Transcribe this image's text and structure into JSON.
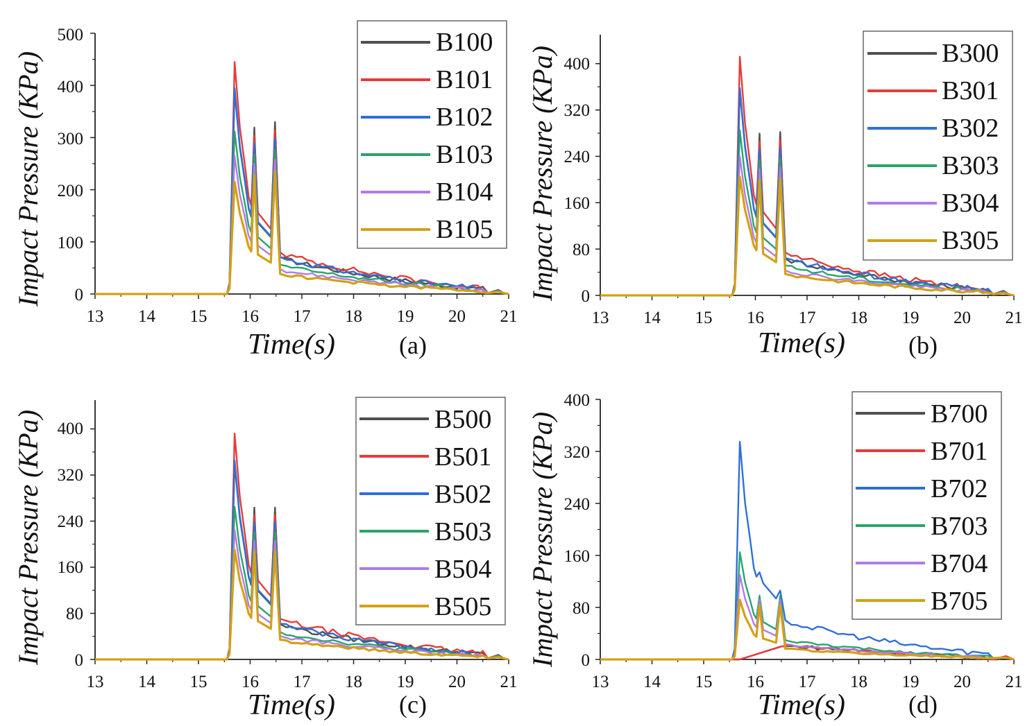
{
  "colors": {
    "series": [
      "#505050",
      "#e63b3b",
      "#2f6fd6",
      "#2aa36b",
      "#b17be6",
      "#d4a017"
    ]
  },
  "chart_data": [
    {
      "type": "line",
      "panel_label": "(a)",
      "xlabel": "Time(s)",
      "ylabel": "Impact Pressure (KPa)",
      "xlim": [
        13,
        21
      ],
      "ylim": [
        0,
        500
      ],
      "xticks": [
        "13",
        "14",
        "15",
        "16",
        "17",
        "18",
        "19",
        "20",
        "21"
      ],
      "yticks": [
        "0",
        "100",
        "200",
        "300",
        "400",
        "500"
      ],
      "ytick_values": [
        0,
        100,
        200,
        300,
        400,
        500
      ],
      "legend_position": "top-right",
      "series": [
        {
          "name": "B100",
          "peak": 390,
          "scale": 1.05
        },
        {
          "name": "B101",
          "peak": 445,
          "scale": 1.0
        },
        {
          "name": "B102",
          "peak": 395,
          "scale": 0.95
        },
        {
          "name": "B103",
          "peak": 312,
          "scale": 0.88
        },
        {
          "name": "B104",
          "peak": 265,
          "scale": 0.82
        },
        {
          "name": "B105",
          "peak": 215,
          "scale": 0.75
        }
      ],
      "secondary_peaks": {
        "t16_1": 240,
        "t16_5": 248
      }
    },
    {
      "type": "line",
      "panel_label": "(b)",
      "xlabel": "Time(s)",
      "ylabel": "Impact Pressure (KPa)",
      "xlim": [
        13,
        21
      ],
      "ylim": [
        0,
        450
      ],
      "xticks": [
        "13",
        "14",
        "15",
        "16",
        "17",
        "18",
        "19",
        "20",
        "21"
      ],
      "yticks": [
        "0",
        "80",
        "160",
        "240",
        "320",
        "400"
      ],
      "ytick_values": [
        0,
        80,
        160,
        240,
        320,
        400
      ],
      "legend_position": "top-right",
      "series": [
        {
          "name": "B300",
          "peak": 355,
          "scale": 1.05
        },
        {
          "name": "B301",
          "peak": 412,
          "scale": 1.0
        },
        {
          "name": "B302",
          "peak": 358,
          "scale": 0.95
        },
        {
          "name": "B303",
          "peak": 285,
          "scale": 0.88
        },
        {
          "name": "B304",
          "peak": 240,
          "scale": 0.82
        },
        {
          "name": "B305",
          "peak": 205,
          "scale": 0.75
        }
      ],
      "secondary_peaks": {
        "t16_1": 210,
        "t16_5": 212
      }
    },
    {
      "type": "line",
      "panel_label": "(c)",
      "xlabel": "Time(s)",
      "ylabel": "Impact Pressure (KPa)",
      "xlim": [
        13,
        21
      ],
      "ylim": [
        0,
        450
      ],
      "xticks": [
        "13",
        "14",
        "15",
        "16",
        "17",
        "18",
        "19",
        "20",
        "21"
      ],
      "yticks": [
        "0",
        "80",
        "160",
        "240",
        "320",
        "400"
      ],
      "ytick_values": [
        0,
        80,
        160,
        240,
        320,
        400
      ],
      "legend_position": "top-right",
      "series": [
        {
          "name": "B500",
          "peak": 340,
          "scale": 1.05
        },
        {
          "name": "B501",
          "peak": 392,
          "scale": 1.0
        },
        {
          "name": "B502",
          "peak": 345,
          "scale": 0.95
        },
        {
          "name": "B503",
          "peak": 265,
          "scale": 0.88
        },
        {
          "name": "B504",
          "peak": 225,
          "scale": 0.82
        },
        {
          "name": "B505",
          "peak": 190,
          "scale": 0.75
        }
      ],
      "secondary_peaks": {
        "t16_1": 198,
        "t16_5": 198
      }
    },
    {
      "type": "line",
      "panel_label": "(d)",
      "xlabel": "Time(s)",
      "ylabel": "Impact Pressure (KPa)",
      "xlim": [
        13,
        21
      ],
      "ylim": [
        0,
        400
      ],
      "xticks": [
        "13",
        "14",
        "15",
        "16",
        "17",
        "18",
        "19",
        "20",
        "21"
      ],
      "yticks": [
        "0",
        "80",
        "160",
        "240",
        "320",
        "400"
      ],
      "ytick_values": [
        0,
        80,
        160,
        240,
        320,
        400
      ],
      "legend_position": "top-right",
      "series": [
        {
          "name": "B700",
          "peak": 0,
          "scale": 1.0
        },
        {
          "name": "B701",
          "peak": 0,
          "scale": 1.0
        },
        {
          "name": "B702",
          "peak": 335,
          "scale": 0.95
        },
        {
          "name": "B703",
          "peak": 165,
          "scale": 0.88
        },
        {
          "name": "B704",
          "peak": 130,
          "scale": 0.82
        },
        {
          "name": "B705",
          "peak": 92,
          "scale": 0.75
        }
      ],
      "secondary_peaks": {
        "t16_1": 88,
        "t16_5": 88
      }
    }
  ]
}
